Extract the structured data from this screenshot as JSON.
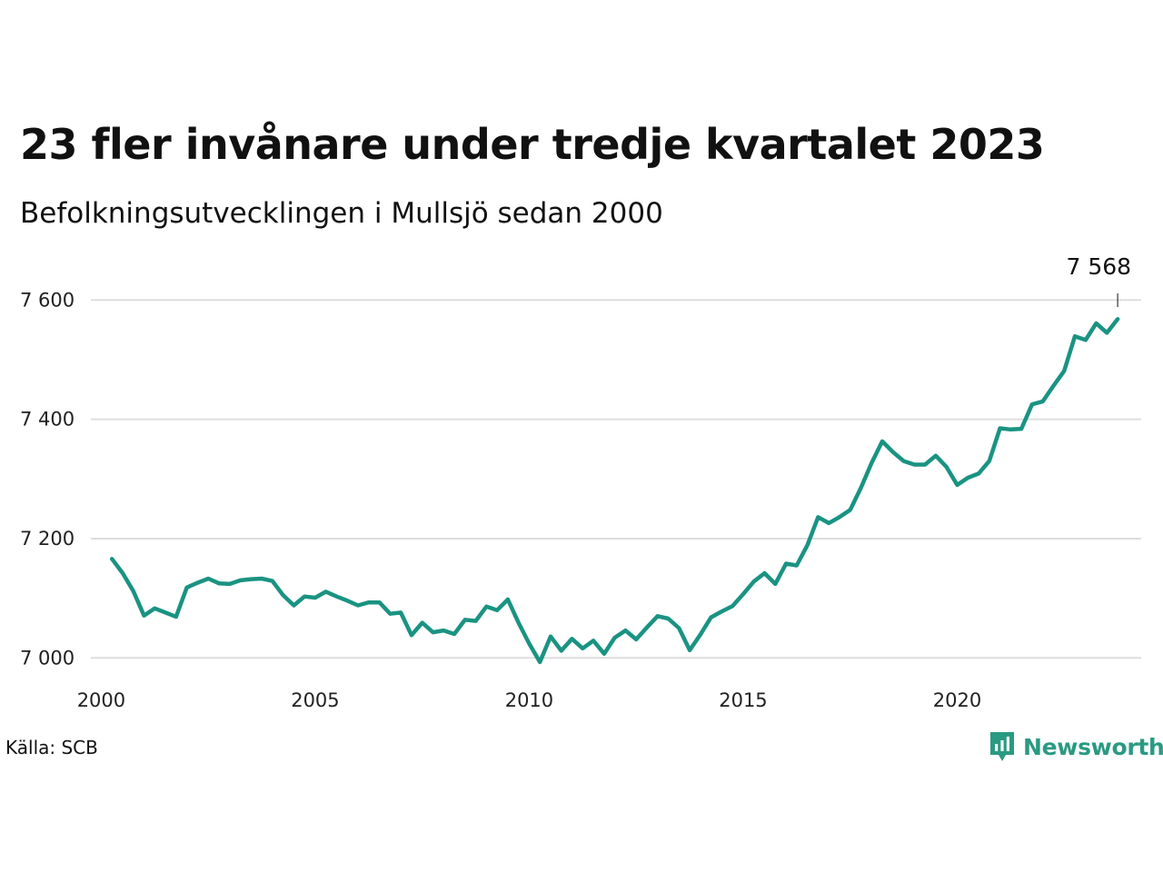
{
  "header": {
    "title": "23 fler invånare under tredje kvartalet 2023",
    "subtitle": "Befolkningsutvecklingen i Mullsjö sedan 2000"
  },
  "footer": {
    "source": "Källa: SCB",
    "brand": "Newsworthy"
  },
  "colors": {
    "line": "#1a9382",
    "grid": "#dddddd",
    "brand": "#2a9a82"
  },
  "chart_data": {
    "type": "line",
    "ylim": [
      6970,
      7640
    ],
    "xlim": [
      1999.8,
      2024.3
    ],
    "y_ticks": [
      {
        "value": 7000,
        "label": "7 000"
      },
      {
        "value": 7200,
        "label": "7 200"
      },
      {
        "value": 7400,
        "label": "7 400"
      },
      {
        "value": 7600,
        "label": "7 600"
      }
    ],
    "x_ticks": [
      {
        "value": 2000,
        "label": "2000"
      },
      {
        "value": 2005,
        "label": "2005"
      },
      {
        "value": 2010,
        "label": "2010"
      },
      {
        "value": 2015,
        "label": "2015"
      },
      {
        "value": 2020,
        "label": "2020"
      }
    ],
    "grid": true,
    "last_value_label": "7 568",
    "series": [
      {
        "x": [
          2000.25,
          2000.5,
          2000.75,
          2001.0,
          2001.25,
          2001.5,
          2001.75,
          2002.0,
          2002.25,
          2002.5,
          2002.75,
          2003.0,
          2003.25,
          2003.5,
          2003.75,
          2004.0,
          2004.25,
          2004.5,
          2004.75,
          2005.0,
          2005.25,
          2005.5,
          2005.75,
          2006.0,
          2006.25,
          2006.5,
          2006.75,
          2007.0,
          2007.25,
          2007.5,
          2007.75,
          2008.0,
          2008.25,
          2008.5,
          2008.75,
          2009.0,
          2009.25,
          2009.5,
          2009.75,
          2010.0,
          2010.25,
          2010.5,
          2010.75,
          2011.0,
          2011.25,
          2011.5,
          2011.75,
          2012.0,
          2012.25,
          2012.5,
          2012.75,
          2013.0,
          2013.25,
          2013.5,
          2013.75,
          2014.0,
          2014.25,
          2014.5,
          2014.75,
          2015.0,
          2015.25,
          2015.5,
          2015.75,
          2016.0,
          2016.25,
          2016.5,
          2016.75,
          2017.0,
          2017.25,
          2017.5,
          2017.75,
          2018.0,
          2018.25,
          2018.5,
          2018.75,
          2019.0,
          2019.25,
          2019.5,
          2019.75,
          2020.0,
          2020.25,
          2020.5,
          2020.75,
          2021.0,
          2021.25,
          2021.5,
          2021.75,
          2022.0,
          2022.25,
          2022.5,
          2022.75,
          2023.0,
          2023.25,
          2023.5,
          2023.75
        ],
        "values": [
          7166,
          7142,
          7112,
          7071,
          7083,
          7076,
          7069,
          7118,
          7126,
          7133,
          7125,
          7124,
          7130,
          7132,
          7133,
          7129,
          7105,
          7088,
          7103,
          7101,
          7111,
          7103,
          7096,
          7088,
          7093,
          7093,
          7074,
          7076,
          7038,
          7059,
          7043,
          7046,
          7040,
          7064,
          7062,
          7086,
          7080,
          7098,
          7059,
          7024,
          6993,
          7036,
          7012,
          7032,
          7016,
          7029,
          7007,
          7034,
          7046,
          7031,
          7051,
          7070,
          7066,
          7050,
          7013,
          7039,
          7068,
          7078,
          7087,
          7107,
          7128,
          7142,
          7124,
          7158,
          7155,
          7189,
          7236,
          7226,
          7236,
          7248,
          7285,
          7327,
          7363,
          7345,
          7330,
          7324,
          7324,
          7339,
          7320,
          7290,
          7302,
          7309,
          7330,
          7385,
          7383,
          7384,
          7425,
          7430,
          7456,
          7481,
          7539,
          7533,
          7561,
          7545,
          7568
        ]
      }
    ]
  }
}
